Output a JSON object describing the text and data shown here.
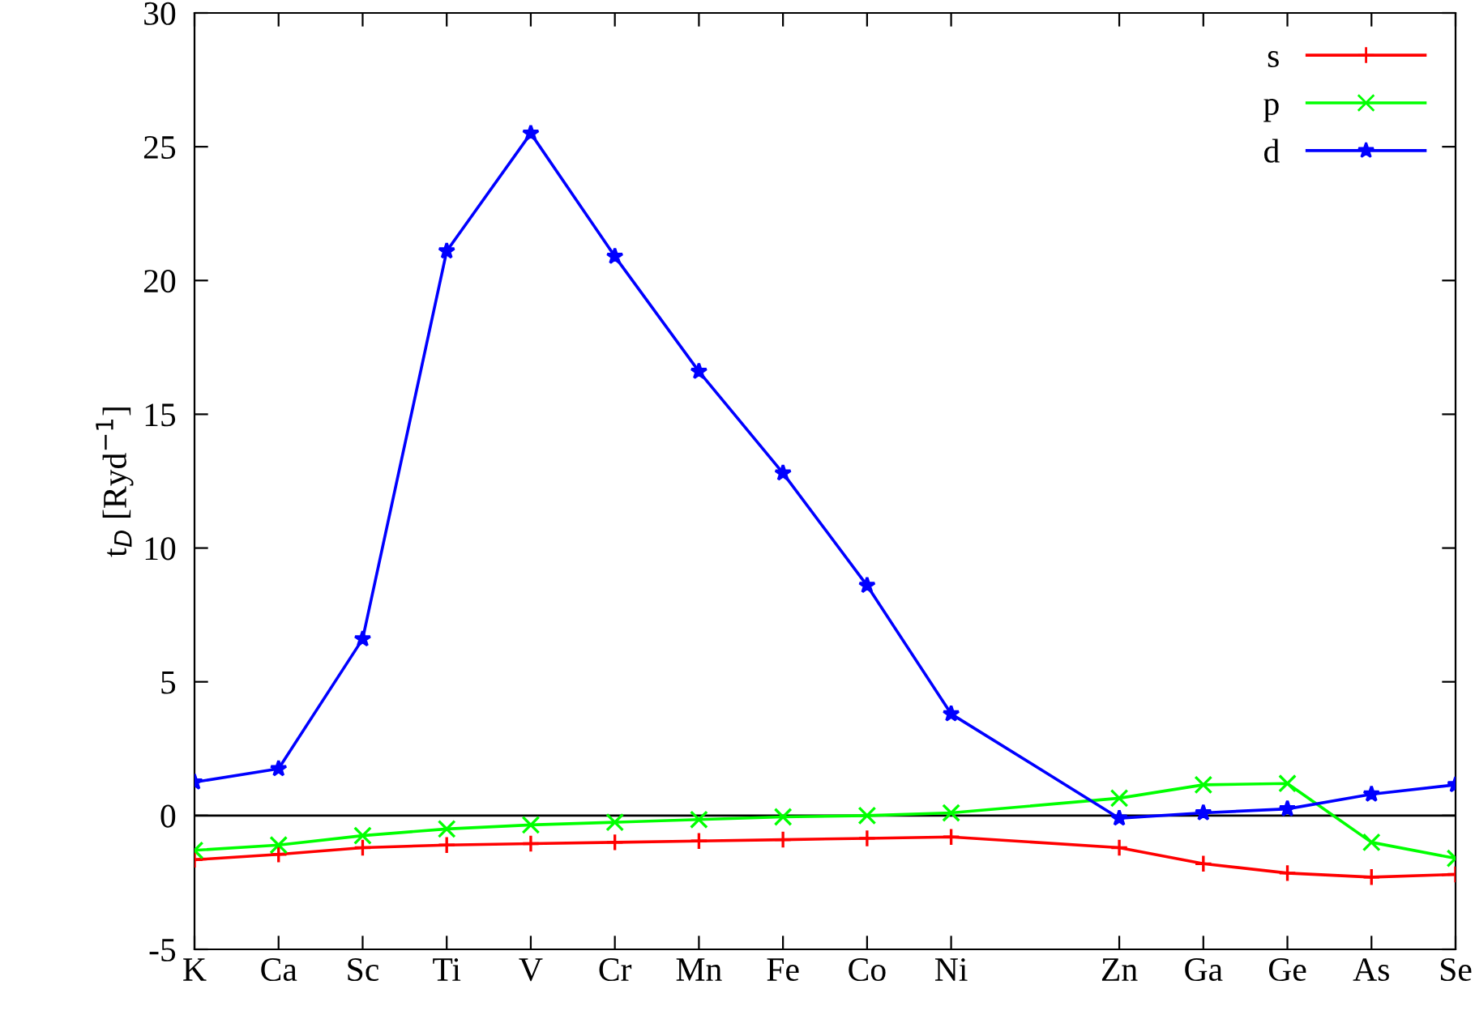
{
  "chart_data": {
    "type": "line",
    "ylabel": "t$_{D}$ [Ryd$^{−1}$]",
    "categories": [
      "K",
      "Ca",
      "Sc",
      "Ti",
      "V",
      "Cr",
      "Mn",
      "Fe",
      "Co",
      "Ni",
      null,
      "Zn",
      "Ga",
      "Ge",
      "As",
      "Se"
    ],
    "ylim": [
      -5,
      30
    ],
    "yticks": [
      -5,
      0,
      5,
      10,
      15,
      20,
      25,
      30
    ],
    "grid": false,
    "legend": "top right",
    "ref_lines": [
      {
        "axis": "y",
        "value": 0,
        "color": "#000000"
      }
    ],
    "series": [
      {
        "name": "s",
        "color": "#ff0000",
        "marker": "plus",
        "values": [
          -1.65,
          -1.45,
          -1.2,
          -1.1,
          -1.05,
          -1.0,
          -0.95,
          -0.9,
          -0.85,
          -0.8,
          null,
          -1.2,
          -1.8,
          -2.15,
          -2.3,
          -2.2
        ]
      },
      {
        "name": "p",
        "color": "#00ff00",
        "marker": "cross",
        "values": [
          -1.3,
          -1.1,
          -0.75,
          -0.5,
          -0.35,
          -0.25,
          -0.15,
          -0.05,
          0.0,
          0.1,
          null,
          0.65,
          1.15,
          1.2,
          -1.0,
          -1.6
        ]
      },
      {
        "name": "d",
        "color": "#0000ff",
        "marker": "star",
        "values": [
          1.25,
          1.75,
          6.6,
          21.1,
          25.5,
          20.9,
          16.6,
          12.8,
          8.6,
          3.8,
          null,
          -0.1,
          0.1,
          0.25,
          0.8,
          1.15
        ]
      }
    ]
  }
}
